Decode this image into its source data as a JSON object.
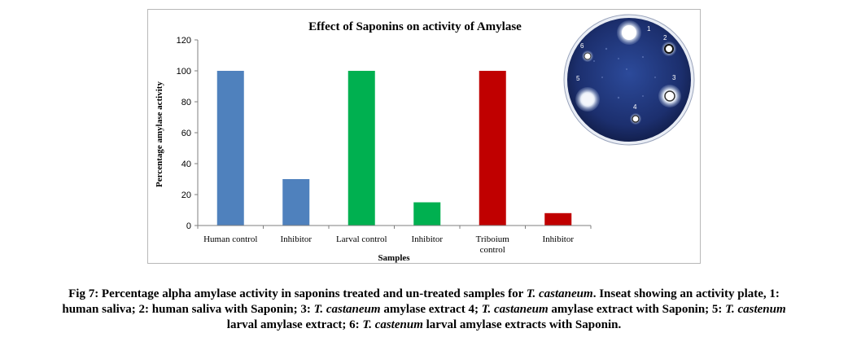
{
  "chart_data": {
    "type": "bar",
    "title": "Effect of Saponins on activity of Amylase",
    "xlabel": "Samples",
    "ylabel": "Percentage amylase activity",
    "ylim": [
      0,
      120
    ],
    "yticks": [
      0,
      20,
      40,
      60,
      80,
      100,
      120
    ],
    "categories": [
      "Human control",
      "Inhibitor",
      "Larval control",
      "Inhibitor",
      "Triboium control",
      "Inhibitor"
    ],
    "values": [
      100,
      30,
      100,
      15,
      100,
      8
    ],
    "bar_colors": [
      "#4f81bd",
      "#4f81bd",
      "#00b050",
      "#00b050",
      "#c00000",
      "#c00000"
    ],
    "grid": false,
    "legend": "none"
  },
  "inset": {
    "well_labels": [
      "1",
      "2",
      "3",
      "4",
      "5",
      "6"
    ],
    "plate_color": "#1c2f6e"
  },
  "caption": {
    "p1": "Fig 7: Percentage alpha amylase activity in saponins treated and un-treated samples for ",
    "i1": "T. castaneum",
    "p2": ". Inseat showing an activity plate, 1:",
    "p3": "human saliva; 2: human saliva with Saponin; 3: ",
    "i2": "T. castaneum",
    "p4": " amylase extract 4; ",
    "i3": "T. castaneum",
    "p5": " amylase extract with Saponin; 5: ",
    "i4": "T. castenum",
    "p6": "larval amylase extract; 6: ",
    "i5": "T. castenum",
    "p7": " larval amylase extracts with Saponin."
  }
}
